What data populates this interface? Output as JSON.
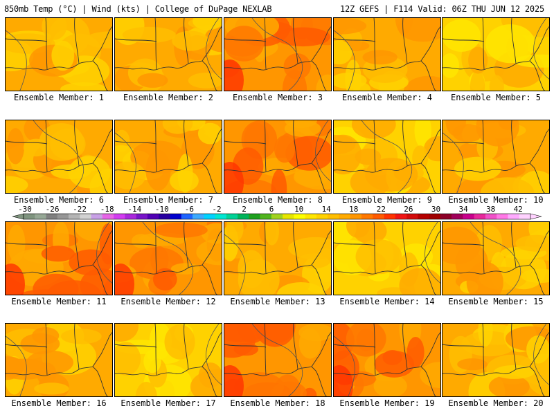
{
  "header": {
    "left": "850mb Temp (°C) | Wind (kts) | College of DuPage NEXLAB",
    "right": "12Z GEFS | F114 Valid: 06Z THU JUN 12 2025"
  },
  "members": [
    {
      "label": "Ensemble Member: 1",
      "tone": "mid"
    },
    {
      "label": "Ensemble Member: 2",
      "tone": "mid"
    },
    {
      "label": "Ensemble Member: 3",
      "tone": "hot"
    },
    {
      "label": "Ensemble Member: 4",
      "tone": "mid"
    },
    {
      "label": "Ensemble Member: 5",
      "tone": "cool"
    },
    {
      "label": "Ensemble Member: 6",
      "tone": "mid"
    },
    {
      "label": "Ensemble Member: 7",
      "tone": "mid"
    },
    {
      "label": "Ensemble Member: 8",
      "tone": "hot"
    },
    {
      "label": "Ensemble Member: 9",
      "tone": "cool"
    },
    {
      "label": "Ensemble Member: 10",
      "tone": "mid"
    },
    {
      "label": "Ensemble Member: 11",
      "tone": "hot"
    },
    {
      "label": "Ensemble Member: 12",
      "tone": "hot"
    },
    {
      "label": "Ensemble Member: 13",
      "tone": "mid"
    },
    {
      "label": "Ensemble Member: 14",
      "tone": "cool"
    },
    {
      "label": "Ensemble Member: 15",
      "tone": "mid"
    },
    {
      "label": "Ensemble Member: 16",
      "tone": "mid"
    },
    {
      "label": "Ensemble Member: 17",
      "tone": "cool"
    },
    {
      "label": "Ensemble Member: 18",
      "tone": "hot"
    },
    {
      "label": "Ensemble Member: 19",
      "tone": "hot"
    },
    {
      "label": "Ensemble Member: 20",
      "tone": "mid"
    }
  ],
  "colorbar": {
    "ticks": [
      "-30",
      "-26",
      "-22",
      "-18",
      "-14",
      "-10",
      "-6",
      "-2",
      "2",
      "6",
      "10",
      "14",
      "18",
      "22",
      "26",
      "30",
      "34",
      "38",
      "42"
    ],
    "colors": [
      "#7f947f",
      "#96a896",
      "#808080",
      "#969696",
      "#b4b4b4",
      "#d2d2d2",
      "#c8a0e6",
      "#e664e6",
      "#d23cf0",
      "#aa28dc",
      "#7814c8",
      "#5000b4",
      "#2800a0",
      "#0000cd",
      "#1e64ff",
      "#3caaff",
      "#00d2ff",
      "#00e6d2",
      "#00d296",
      "#00b45a",
      "#1ea01e",
      "#50b41e",
      "#a0d21e",
      "#e6e600",
      "#ffff00",
      "#ffe600",
      "#ffd200",
      "#ffbe00",
      "#ffaa00",
      "#ff9600",
      "#ff7800",
      "#ff5a00",
      "#ff3200",
      "#f01414",
      "#d20a0a",
      "#b40000",
      "#a00000",
      "#8c0028",
      "#a0005a",
      "#c8008c",
      "#e6289b",
      "#f050c8",
      "#ff78e6",
      "#ffaaff",
      "#ffd2ff"
    ],
    "units": "°C"
  }
}
